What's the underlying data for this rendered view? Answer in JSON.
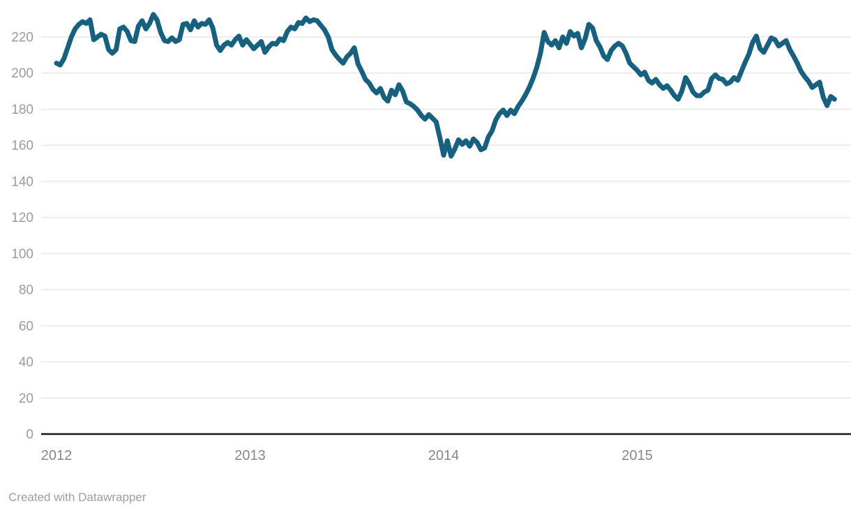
{
  "chart": {
    "footer": "Created with Datawrapper",
    "colors": {
      "line": "#166080",
      "grid": "#e7e7e7",
      "baseline": "#161616",
      "y_label": "#9b9b9b",
      "x_label": "#878787",
      "footer_text": "#9d9d9d",
      "background": "#ffffff"
    }
  },
  "chart_data": {
    "type": "line",
    "title": "",
    "xlabel": "",
    "ylabel": "",
    "grid": true,
    "legend": "none",
    "ylim": [
      0,
      236
    ],
    "y_ticks": [
      0,
      20,
      40,
      60,
      80,
      100,
      120,
      140,
      160,
      180,
      200,
      220
    ],
    "x_tick_labels": [
      "2012",
      "2013",
      "2014",
      "2015"
    ],
    "x_tick_years": [
      2012,
      2013,
      2014,
      2015
    ],
    "x_start_year": 2012,
    "points_per_year": 52,
    "series": [
      {
        "name": "value",
        "values": [
          205.5,
          204.5,
          208,
          214,
          220,
          224.5,
          227,
          228.5,
          227.5,
          229.5,
          218.5,
          220,
          221.5,
          220.5,
          213,
          211,
          213,
          224.5,
          225.5,
          223,
          218,
          217.5,
          226,
          229,
          224.5,
          227.5,
          232.5,
          229.5,
          222.5,
          218,
          217.5,
          219.5,
          217.5,
          218.5,
          227,
          227.5,
          224,
          229,
          225.5,
          227.5,
          227,
          229.5,
          225,
          215.5,
          212.5,
          215.5,
          217,
          215.5,
          218.5,
          220.5,
          215.5,
          218.5,
          216,
          213.5,
          215.5,
          217.5,
          211.5,
          214.5,
          216.5,
          216,
          219,
          218,
          223,
          225.5,
          224.5,
          228,
          227.5,
          230.5,
          228.5,
          229.5,
          229,
          226.5,
          224,
          220,
          213,
          210,
          207.5,
          205.5,
          209,
          211,
          214,
          205,
          201,
          196.5,
          194.5,
          191,
          189,
          191.5,
          186.5,
          184.5,
          190.5,
          188,
          193.5,
          190,
          184,
          183,
          181.5,
          179.5,
          176.5,
          174.5,
          177,
          175,
          173,
          164,
          154.5,
          162.5,
          154,
          158,
          163,
          160.5,
          162.5,
          159.5,
          163.5,
          161.5,
          157.5,
          158.5,
          164.5,
          168,
          174,
          177.5,
          179.5,
          176.5,
          179.5,
          177.5,
          181.5,
          184.5,
          188,
          192,
          197,
          203,
          211,
          222.5,
          217.5,
          215.5,
          218,
          214,
          220,
          216.5,
          223,
          220.5,
          222,
          214,
          219,
          227,
          225,
          218,
          214.5,
          209.5,
          207.5,
          212.5,
          215,
          216.5,
          215,
          211,
          205.5,
          203.5,
          201.5,
          199,
          200.5,
          196,
          194.5,
          196.5,
          193.5,
          191.5,
          193,
          190.5,
          187.5,
          185.5,
          190,
          197.5,
          194,
          189.5,
          187.5,
          187.5,
          189.5,
          190.5,
          197,
          199,
          197,
          196.5,
          194,
          195,
          197.5,
          196,
          201,
          206,
          210.5,
          217,
          220.5,
          213.5,
          211.5,
          215.5,
          219.5,
          218.5,
          215,
          216.5,
          218,
          213,
          209.5,
          205.5,
          201,
          198,
          195.5,
          192,
          193.5,
          195,
          186.5,
          182,
          187,
          185.5
        ]
      }
    ]
  }
}
